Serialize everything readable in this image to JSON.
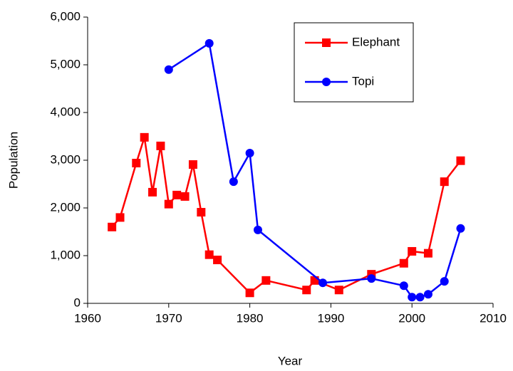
{
  "chart_data": {
    "type": "line",
    "xlabel": "Year",
    "ylabel": "Population",
    "xlim": [
      1960,
      2010
    ],
    "xticks": [
      1960,
      1970,
      1980,
      1990,
      2000,
      2010
    ],
    "ylim": [
      0,
      6000
    ],
    "yticks": [
      0,
      {
        "value": 1000,
        "label": "1,000"
      },
      {
        "value": 2000,
        "label": "2,000"
      },
      {
        "value": 3000,
        "label": "3,000"
      },
      {
        "value": 4000,
        "label": "4,000"
      },
      {
        "value": 5000,
        "label": "5,000"
      },
      {
        "value": 6000,
        "label": "6,000"
      }
    ],
    "legend": "upper right",
    "series": [
      {
        "name": "Elephant",
        "color": "#ff0000",
        "marker": "square",
        "x": [
          1963,
          1964,
          1966,
          1967,
          1968,
          1969,
          1970,
          1971,
          1972,
          1973,
          1974,
          1975,
          1976,
          1980,
          1982,
          1987,
          1988,
          1991,
          1995,
          1999,
          2000,
          2002,
          2004,
          2006
        ],
        "values": [
          1600,
          1800,
          2940,
          3480,
          2330,
          3300,
          2080,
          2270,
          2240,
          2910,
          1910,
          1020,
          910,
          220,
          480,
          280,
          480,
          280,
          610,
          840,
          1090,
          1050,
          2550,
          2990
        ]
      },
      {
        "name": "Topi",
        "color": "#0000ff",
        "marker": "circle",
        "x": [
          1970,
          1975,
          1978,
          1980,
          1981,
          1989,
          1995,
          1999,
          2000,
          2001,
          2002,
          2004,
          2006
        ],
        "values": [
          4900,
          5450,
          2550,
          3150,
          1540,
          430,
          520,
          370,
          130,
          130,
          190,
          460,
          1570
        ]
      }
    ]
  }
}
